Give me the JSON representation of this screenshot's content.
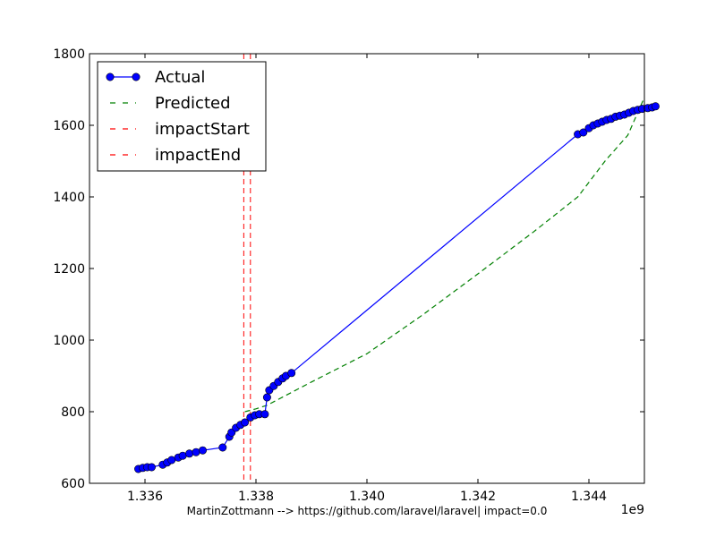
{
  "chart_data": {
    "type": "line",
    "caption": "MartinZottmann --> https://github.com/laravel/laravel| impact=0.0",
    "x_offset_label": "1e9",
    "xlim": [
      1.335,
      1.345
    ],
    "ylim": [
      600,
      1800
    ],
    "x_ticks": [
      1.336,
      1.338,
      1.34,
      1.342,
      1.344
    ],
    "x_tick_labels": [
      "1.336",
      "1.338",
      "1.340",
      "1.342",
      "1.344"
    ],
    "y_ticks": [
      600,
      800,
      1000,
      1200,
      1400,
      1600,
      1800
    ],
    "y_tick_labels": [
      "600",
      "800",
      "1000",
      "1200",
      "1400",
      "1600",
      "1800"
    ],
    "grid": false,
    "legend_position": "top-left",
    "series": [
      {
        "name": "Actual",
        "color": "#0000ff",
        "style": "solid-with-markers",
        "x": [
          1.33588,
          1.33596,
          1.33604,
          1.33612,
          1.33632,
          1.3364,
          1.33648,
          1.3366,
          1.33668,
          1.3368,
          1.33692,
          1.33704,
          1.3374,
          1.33752,
          1.33756,
          1.33764,
          1.33772,
          1.3378,
          1.3379,
          1.33798,
          1.33806,
          1.33816,
          1.3382,
          1.33824,
          1.33832,
          1.3384,
          1.33848,
          1.33854,
          1.33864,
          1.3438,
          1.3439,
          1.344,
          1.34408,
          1.34416,
          1.34424,
          1.34432,
          1.3444,
          1.34448,
          1.34456,
          1.34464,
          1.34472,
          1.3448,
          1.34488,
          1.34496,
          1.34506,
          1.34514,
          1.3452
        ],
        "y": [
          640,
          643,
          645,
          645,
          652,
          658,
          665,
          672,
          677,
          683,
          687,
          692,
          700,
          730,
          742,
          755,
          763,
          770,
          784,
          790,
          793,
          793,
          840,
          860,
          872,
          883,
          893,
          900,
          908,
          1575,
          1580,
          1592,
          1600,
          1605,
          1610,
          1615,
          1618,
          1624,
          1627,
          1630,
          1635,
          1640,
          1643,
          1646,
          1648,
          1650,
          1653
        ]
      },
      {
        "name": "Predicted",
        "color": "#008000",
        "style": "dashed",
        "x": [
          1.3378,
          1.338,
          1.3382,
          1.339,
          1.34,
          1.341,
          1.342,
          1.343,
          1.3438,
          1.3443,
          1.3447,
          1.345
        ],
        "y": [
          800,
          808,
          818,
          883,
          962,
          1070,
          1185,
          1302,
          1400,
          1502,
          1572,
          1678
        ]
      },
      {
        "name": "impactStart",
        "color": "#ff0000",
        "style": "dashed-vertical",
        "x": [
          1.33778
        ]
      },
      {
        "name": "impactEnd",
        "color": "#ff0000",
        "style": "dashed-vertical",
        "x": [
          1.3379
        ]
      }
    ]
  }
}
